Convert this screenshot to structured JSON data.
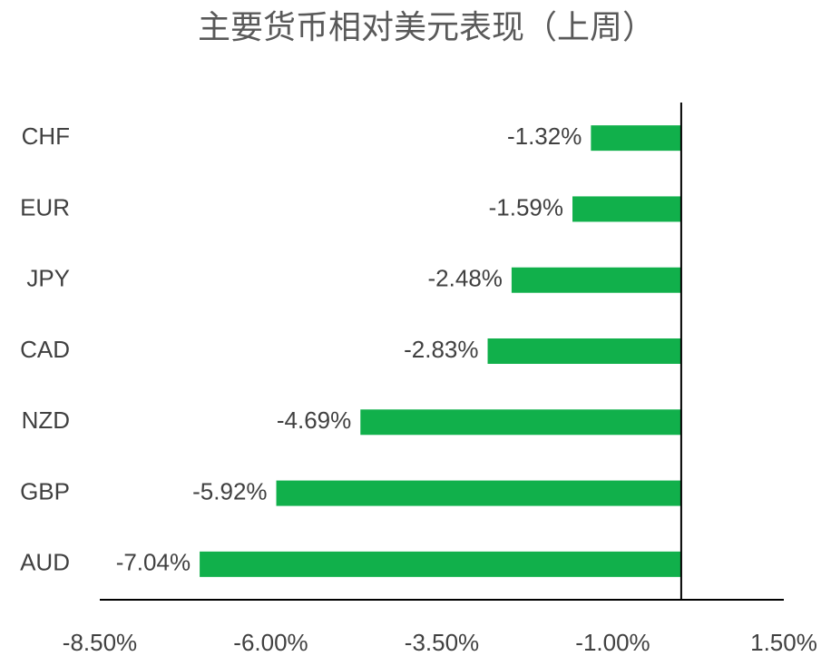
{
  "chart_data": {
    "type": "hbar",
    "title": "主要货币相对美元表现（上周）",
    "categories": [
      "CHF",
      "EUR",
      "JPY",
      "CAD",
      "NZD",
      "GBP",
      "AUD"
    ],
    "values": [
      -1.32,
      -1.59,
      -2.48,
      -2.83,
      -4.69,
      -5.92,
      -7.04
    ],
    "value_labels": [
      "-1.32%",
      "-1.59%",
      "-2.48%",
      "-2.83%",
      "-4.69%",
      "-5.92%",
      "-7.04%"
    ],
    "color": "#11b04b",
    "xlim": [
      -8.5,
      1.5
    ],
    "xticks": [
      {
        "value": -8.5,
        "label": "-8.50%"
      },
      {
        "value": -6,
        "label": "-6.00%"
      },
      {
        "value": -3.5,
        "label": "-3.50%"
      },
      {
        "value": -1,
        "label": "-1.00%"
      },
      {
        "value": 1.5,
        "label": "1.50%"
      }
    ]
  }
}
